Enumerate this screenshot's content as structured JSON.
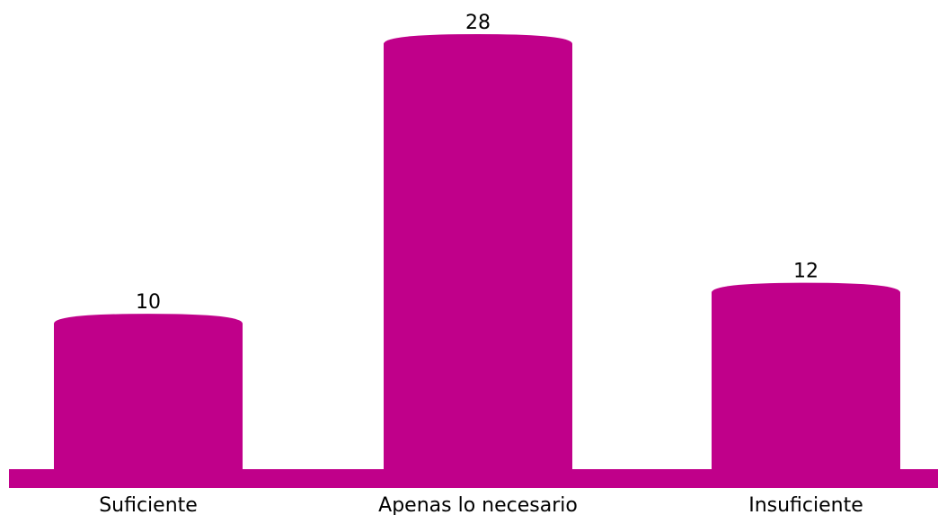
{
  "chart_data": {
    "type": "bar",
    "categories": [
      "Suficiente",
      "Apenas lo necesario",
      "Insuficiente"
    ],
    "values": [
      10,
      28,
      12
    ],
    "data_labels": [
      "10",
      "28",
      "12"
    ],
    "ylim": [
      0,
      30
    ],
    "grid": false,
    "legend": "none",
    "title": "",
    "xlabel": "",
    "ylabel": ""
  },
  "colors": {
    "bar": "#c0008a",
    "baseline": "#c0008a",
    "text": "#000000"
  }
}
